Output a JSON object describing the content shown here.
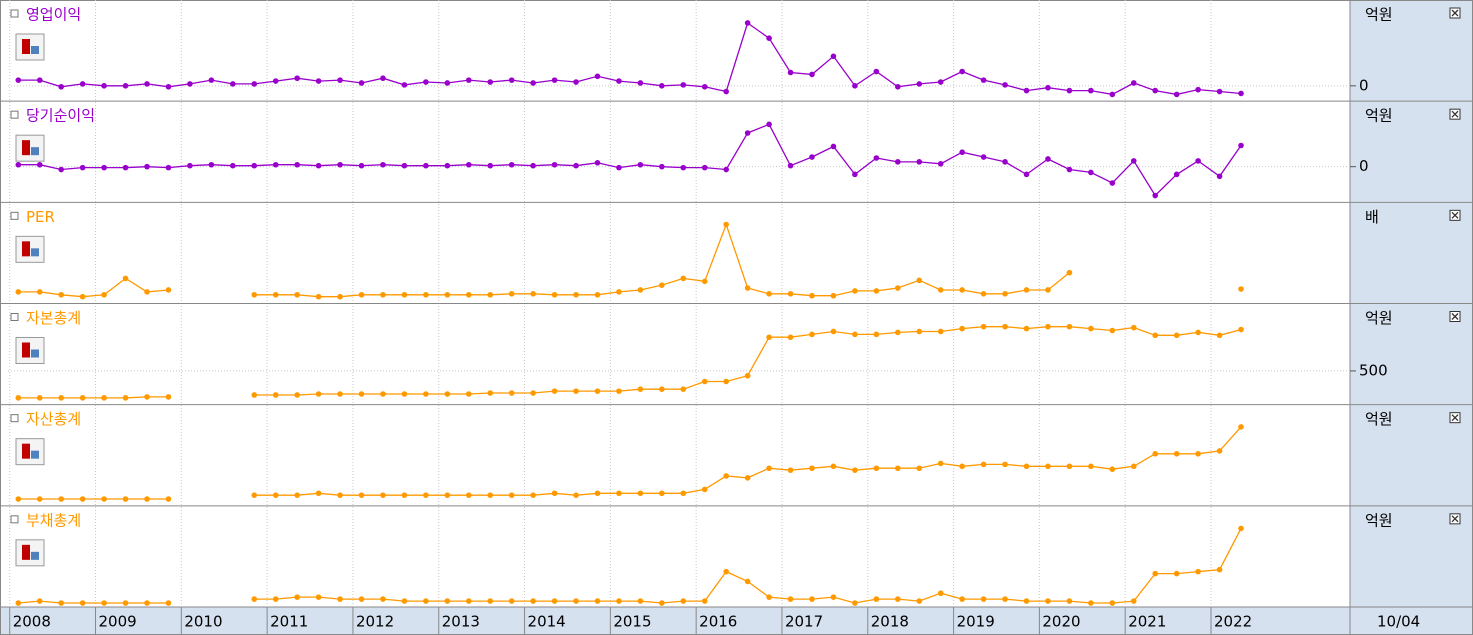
{
  "chart_data": {
    "type": "line",
    "x": [
      2008.1,
      2008.35,
      2008.6,
      2008.85,
      2009.1,
      2009.35,
      2009.6,
      2009.85,
      2010.1,
      2010.35,
      2010.6,
      2010.85,
      2011.1,
      2011.35,
      2011.6,
      2011.85,
      2012.1,
      2012.35,
      2012.6,
      2012.85,
      2013.1,
      2013.35,
      2013.6,
      2013.85,
      2014.1,
      2014.35,
      2014.6,
      2014.85,
      2015.1,
      2015.35,
      2015.6,
      2015.85,
      2016.1,
      2016.35,
      2016.6,
      2016.85,
      2017.1,
      2017.35,
      2017.6,
      2017.85,
      2018.1,
      2018.35,
      2018.6,
      2018.85,
      2019.1,
      2019.35,
      2019.6,
      2019.85,
      2020.1,
      2020.35,
      2020.6,
      2020.85,
      2021.1,
      2021.35,
      2021.6,
      2021.85,
      2022.1,
      2022.35
    ],
    "xlim": [
      2007.98,
      2023.62
    ],
    "xticks": [
      2008,
      2009,
      2010,
      2011,
      2012,
      2013,
      2014,
      2015,
      2016,
      2017,
      2018,
      2019,
      2020,
      2021,
      2022
    ],
    "x_end_label": "10/04",
    "panels": [
      {
        "name": "영업이익",
        "unit": "억원",
        "color": "#9900cc",
        "ylim": [
          -14,
          88
        ],
        "yticks": [
          0
        ],
        "values": [
          6,
          6,
          -1,
          2,
          0,
          0,
          2,
          -1,
          2,
          6,
          2,
          2,
          5,
          8,
          5,
          6,
          3,
          8,
          1,
          4,
          3,
          6,
          4,
          6,
          3,
          6,
          4,
          10,
          5,
          3,
          0,
          1,
          -1,
          -6,
          66,
          50,
          14,
          12,
          31,
          0,
          15,
          -1,
          2,
          4,
          15,
          6,
          1,
          -5,
          -2,
          -5,
          -5,
          -9,
          3,
          -5,
          -9,
          -4,
          -6,
          -8
        ]
      },
      {
        "name": "당기순이익",
        "unit": "억원",
        "color": "#9900cc",
        "ylim": [
          -35,
          66
        ],
        "yticks": [
          0
        ],
        "values": [
          2,
          2,
          -3,
          -1,
          -1,
          -1,
          0,
          -1,
          1,
          2,
          1,
          1,
          2,
          2,
          1,
          2,
          1,
          2,
          1,
          1,
          1,
          2,
          1,
          2,
          1,
          2,
          1,
          4,
          -1,
          2,
          0,
          -1,
          -1,
          -3,
          35,
          44,
          1,
          10,
          21,
          -8,
          9,
          5,
          5,
          3,
          15,
          10,
          5,
          -8,
          8,
          -3,
          -6,
          -17,
          6,
          -30,
          -8,
          6,
          -10,
          22
        ]
      },
      {
        "name": "PER",
        "unit": "배",
        "color": "#ff9900",
        "ylim": [
          -1,
          100
        ],
        "yticks": [],
        "values": [
          9,
          9,
          6,
          4,
          6,
          23,
          9,
          11,
          null,
          null,
          null,
          6,
          6,
          6,
          4,
          4,
          6,
          6,
          6,
          6,
          6,
          6,
          6,
          7,
          7,
          6,
          6,
          6,
          9,
          11,
          16,
          23,
          20,
          79,
          13,
          7,
          7,
          5,
          5,
          10,
          10,
          13,
          21,
          11,
          11,
          7,
          7,
          11,
          11,
          29,
          null,
          null,
          null,
          null,
          null,
          null,
          null,
          12
        ]
      },
      {
        "name": "자본총계",
        "unit": "억원",
        "color": "#ff9900",
        "ylim": [
          368,
          772
        ],
        "yticks": [
          500
        ],
        "values": [
          388,
          388,
          388,
          388,
          388,
          388,
          392,
          392,
          null,
          null,
          null,
          400,
          400,
          400,
          404,
          404,
          404,
          404,
          404,
          404,
          404,
          404,
          408,
          408,
          408,
          416,
          416,
          416,
          416,
          424,
          424,
          424,
          456,
          456,
          480,
          640,
          640,
          652,
          664,
          652,
          652,
          660,
          664,
          664,
          676,
          684,
          684,
          676,
          684,
          684,
          676,
          668,
          680,
          648,
          648,
          660,
          648,
          672
        ]
      },
      {
        "name": "자산총계",
        "unit": "억원",
        "color": "#ff9900",
        "ylim": [
          -1,
          100
        ],
        "yticks": [],
        "values": [
          4,
          4,
          4,
          4,
          4,
          4,
          4,
          4,
          null,
          null,
          null,
          8,
          8,
          8,
          10,
          8,
          8,
          8,
          8,
          8,
          8,
          8,
          8,
          8,
          8,
          10,
          8,
          10,
          10,
          10,
          10,
          10,
          14,
          28,
          26,
          36,
          34,
          36,
          38,
          34,
          36,
          36,
          36,
          41,
          38,
          40,
          40,
          38,
          38,
          38,
          38,
          35,
          38,
          51,
          51,
          51,
          54,
          79
        ]
      },
      {
        "name": "부채총계",
        "unit": "억원",
        "color": "#ff9900",
        "ylim": [
          0,
          99
        ],
        "yticks": [],
        "values": [
          2,
          4,
          2,
          2,
          2,
          2,
          2,
          2,
          null,
          null,
          null,
          6,
          6,
          8,
          8,
          6,
          6,
          6,
          4,
          4,
          4,
          4,
          4,
          4,
          4,
          4,
          4,
          4,
          4,
          4,
          2,
          4,
          4,
          34,
          24,
          8,
          6,
          6,
          8,
          2,
          6,
          6,
          4,
          12,
          6,
          6,
          6,
          4,
          4,
          4,
          2,
          2,
          4,
          32,
          32,
          34,
          36,
          78
        ]
      }
    ]
  }
}
